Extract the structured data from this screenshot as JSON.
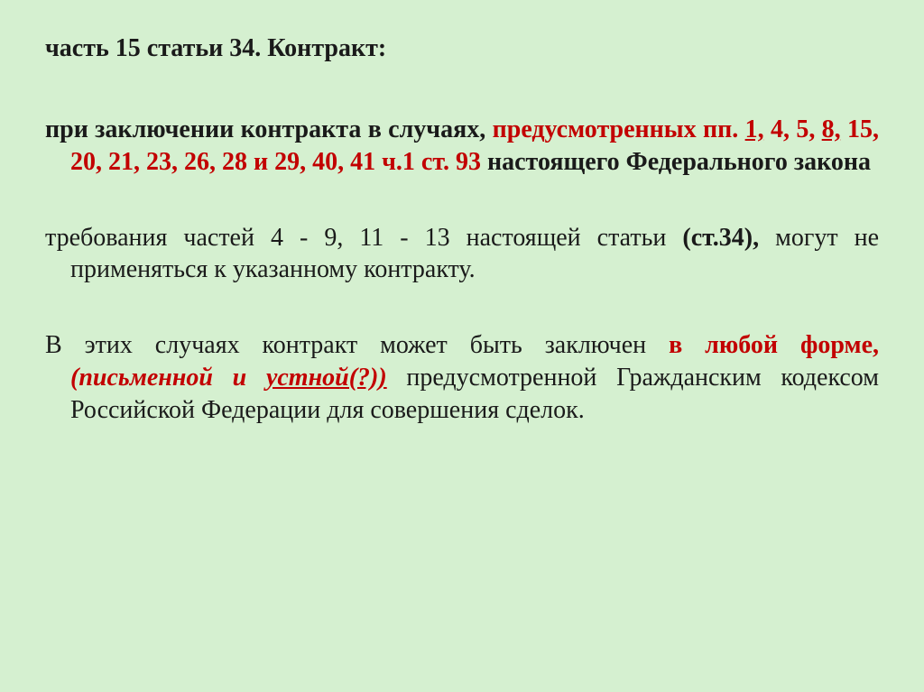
{
  "title": "часть 15 статьи 34. Контракт:",
  "p1": {
    "t1": "при заключении контракта в случаях, ",
    "t2": "предусмотренных пп. ",
    "t3": "1,",
    "t4": " 4, 5, ",
    "t5": "8,",
    "t6": " 15,",
    "t7": " 20, 21, 23, 26, 28 и 29, 40, 41 ч.1 ст. 93 ",
    "t8": "настоящего Федерального закона"
  },
  "p2": {
    "t1": "требования частей 4 - 9, 11 - 13 настоящей статьи ",
    "t2": "(ст.34),",
    "t3": " могут не применяться к указанному контракту."
  },
  "p3": {
    "t1": "В этих случаях контракт может быть заключен ",
    "t2": "в любой форме, ",
    "t3": "(письменной и ",
    "t4": "устной(?))",
    "t5": " предусмотренной Гражданским кодексом Российской Федерации для совершения сделок."
  },
  "colors": {
    "background": "#d5f0d0",
    "text": "#1a1a1a",
    "accent": "#c20000"
  },
  "fontsize_pt": 21
}
